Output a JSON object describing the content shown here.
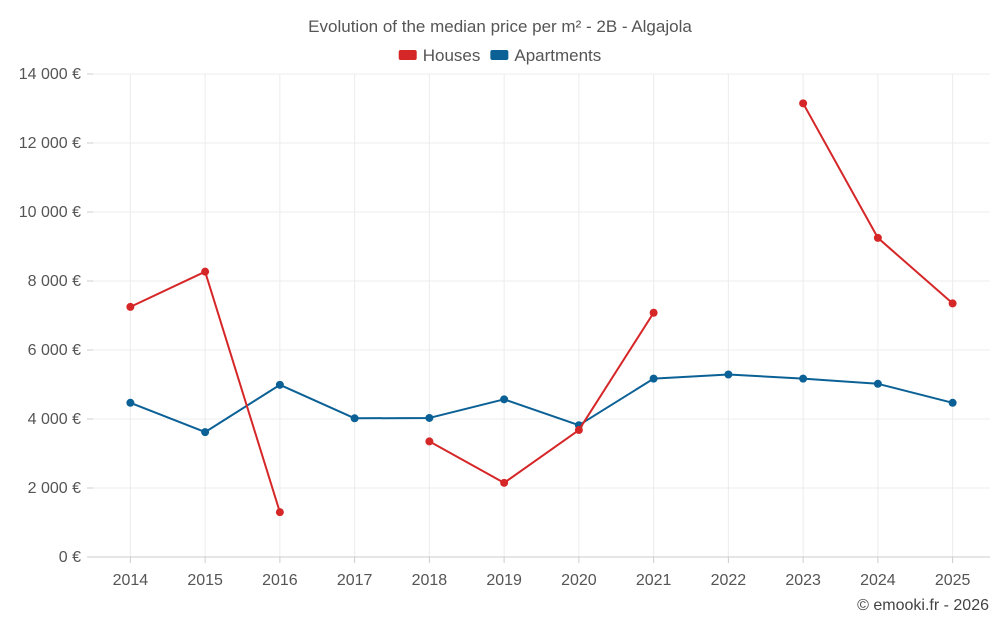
{
  "chart_data": {
    "type": "line",
    "title": "Evolution of the median price per m² - 2B - Algajola",
    "xlabel": "",
    "ylabel": "",
    "categories": [
      "2014",
      "2015",
      "2016",
      "2017",
      "2018",
      "2019",
      "2020",
      "2021",
      "2022",
      "2023",
      "2024",
      "2025"
    ],
    "ylim": [
      0,
      14000
    ],
    "yticks": [
      0,
      2000,
      4000,
      6000,
      8000,
      10000,
      12000,
      14000
    ],
    "ytick_labels": [
      "0 €",
      "2 000 €",
      "4 000 €",
      "6 000 €",
      "8 000 €",
      "10 000 €",
      "12 000 €",
      "14 000 €"
    ],
    "grid": true,
    "legend_position": "top-center",
    "series": [
      {
        "name": "Houses",
        "color": "#d62728",
        "values": [
          7250,
          8270,
          1300,
          null,
          3350,
          2150,
          3680,
          7080,
          null,
          13150,
          9250,
          7350
        ]
      },
      {
        "name": "Apartments",
        "color": "#0b6196",
        "values": [
          4470,
          3620,
          4990,
          4020,
          4030,
          4570,
          3820,
          5170,
          5290,
          5170,
          5020,
          4470
        ]
      }
    ]
  },
  "credit": "© emooki.fr - 2026"
}
